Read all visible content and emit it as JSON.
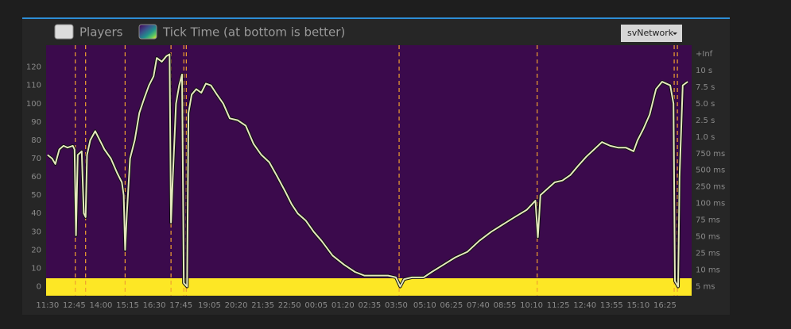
{
  "chart_data": {
    "type": "line",
    "dropdown": "svNetwork",
    "heatmap_name": "Tick Time (at bottom is better)",
    "x": [
      0,
      13,
      22,
      33,
      45,
      56,
      71,
      76,
      80,
      85,
      96,
      102,
      107,
      111,
      120,
      134,
      147,
      160,
      178,
      196,
      209,
      214,
      218,
      223,
      232,
      245,
      258,
      272,
      285,
      298,
      307,
      321,
      334,
      343,
      347,
      352,
      361,
      370,
      378,
      383,
      392,
      396,
      405,
      418,
      432,
      445,
      459,
      476,
      494,
      512,
      534,
      557,
      579,
      601,
      623,
      646,
      668,
      686,
      703,
      726,
      748,
      770,
      801,
      833,
      864,
      890,
      924,
      957,
      979,
      991,
      1002,
      1024,
      1057,
      1080,
      1113,
      1146,
      1180,
      1213,
      1247,
      1280,
      1313,
      1347,
      1371,
      1378,
      1385,
      1402,
      1425,
      1447,
      1469,
      1491,
      1514,
      1536,
      1558,
      1581,
      1603,
      1625,
      1647,
      1658,
      1674,
      1692,
      1710,
      1727,
      1750,
      1759,
      1763,
      1772,
      1776,
      1785,
      1799
    ],
    "series": [
      {
        "name": "Players",
        "color": "#e4e8bc",
        "values": [
          72,
          70,
          67,
          75,
          77,
          76,
          77,
          75,
          28,
          72,
          74,
          40,
          38,
          72,
          80,
          85,
          80,
          75,
          70,
          62,
          57,
          50,
          20,
          40,
          70,
          80,
          95,
          103,
          110,
          115,
          125,
          123,
          126,
          127,
          35,
          60,
          100,
          110,
          116,
          2,
          0,
          95,
          105,
          108,
          106,
          111,
          110,
          105,
          100,
          92,
          91,
          88,
          78,
          72,
          68,
          60,
          52,
          45,
          40,
          36,
          30,
          25,
          17,
          12,
          8,
          6,
          6,
          6,
          5,
          0,
          4,
          5,
          5,
          8,
          12,
          16,
          19,
          25,
          30,
          34,
          38,
          42,
          47,
          27,
          50,
          53,
          57,
          58,
          61,
          66,
          71,
          75,
          79,
          77,
          76,
          76,
          74,
          80,
          86,
          94,
          108,
          112,
          110,
          100,
          3,
          0,
          60,
          110,
          112
        ]
      }
    ],
    "vlines": [
      78,
      107,
      218,
      347,
      383,
      390,
      988,
      1376,
      1761,
      1770
    ],
    "xlim": [
      -4,
      1810
    ],
    "xticks": [
      {
        "value": 0,
        "label": "11:30"
      },
      {
        "value": 75,
        "label": "12:45"
      },
      {
        "value": 150,
        "label": "14:00"
      },
      {
        "value": 225,
        "label": "15:15"
      },
      {
        "value": 300,
        "label": "16:30"
      },
      {
        "value": 375,
        "label": "17:45"
      },
      {
        "value": 455,
        "label": "19:05"
      },
      {
        "value": 530,
        "label": "20:20"
      },
      {
        "value": 605,
        "label": "21:35"
      },
      {
        "value": 680,
        "label": "22:50"
      },
      {
        "value": 755,
        "label": "00:05"
      },
      {
        "value": 830,
        "label": "01:20"
      },
      {
        "value": 905,
        "label": "02:35"
      },
      {
        "value": 980,
        "label": "03:50"
      },
      {
        "value": 1060,
        "label": "05:10"
      },
      {
        "value": 1135,
        "label": "06:25"
      },
      {
        "value": 1210,
        "label": "07:40"
      },
      {
        "value": 1285,
        "label": "08:55"
      },
      {
        "value": 1360,
        "label": "10:10"
      },
      {
        "value": 1435,
        "label": "11:25"
      },
      {
        "value": 1510,
        "label": "12:40"
      },
      {
        "value": 1585,
        "label": "13:55"
      },
      {
        "value": 1660,
        "label": "15:10"
      },
      {
        "value": 1735,
        "label": "16:25"
      }
    ],
    "ylim": [
      -5,
      132
    ],
    "yticks": [
      0,
      10,
      20,
      30,
      40,
      50,
      60,
      70,
      80,
      90,
      100,
      110,
      120
    ],
    "y2categories": [
      "5 ms",
      "10 ms",
      "25 ms",
      "50 ms",
      "75 ms",
      "100 ms",
      "250 ms",
      "500 ms",
      "750 ms",
      "1.0 s",
      "2.5 s",
      "5.0 s",
      "7.5 s",
      "10 s",
      "+Inf"
    ]
  }
}
